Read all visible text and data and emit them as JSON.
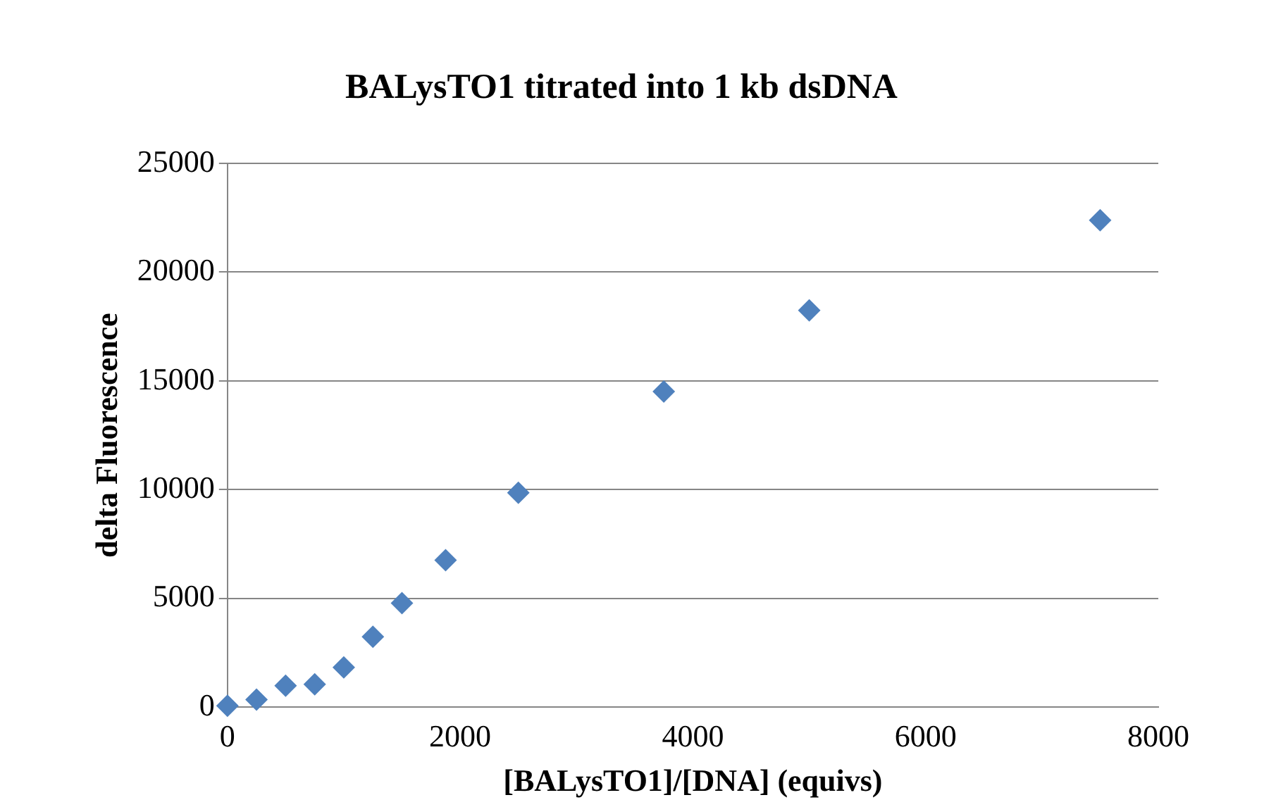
{
  "chart_data": {
    "type": "scatter",
    "title": "BALysTO1 titrated into 1 kb dsDNA",
    "xlabel": "[BALysTO1]/[DNA] (equivs)",
    "ylabel": "delta Fluorescence",
    "x": [
      0,
      250,
      500,
      750,
      1000,
      1250,
      1500,
      1875,
      2500,
      3750,
      5000,
      7500
    ],
    "series": [
      {
        "color": "#4f81bd",
        "values": [
          70,
          350,
          990,
          1060,
          1830,
          3240,
          4790,
          6760,
          9860,
          14510,
          18240,
          22390
        ]
      }
    ],
    "xlim": [
      0,
      8000
    ],
    "xticks": [
      0,
      2000,
      4000,
      6000,
      8000
    ],
    "ylim": [
      0,
      25000
    ],
    "yticks": [
      0,
      5000,
      10000,
      15000,
      20000,
      25000
    ],
    "grid": "y",
    "legend": false,
    "marker": "diamond"
  }
}
